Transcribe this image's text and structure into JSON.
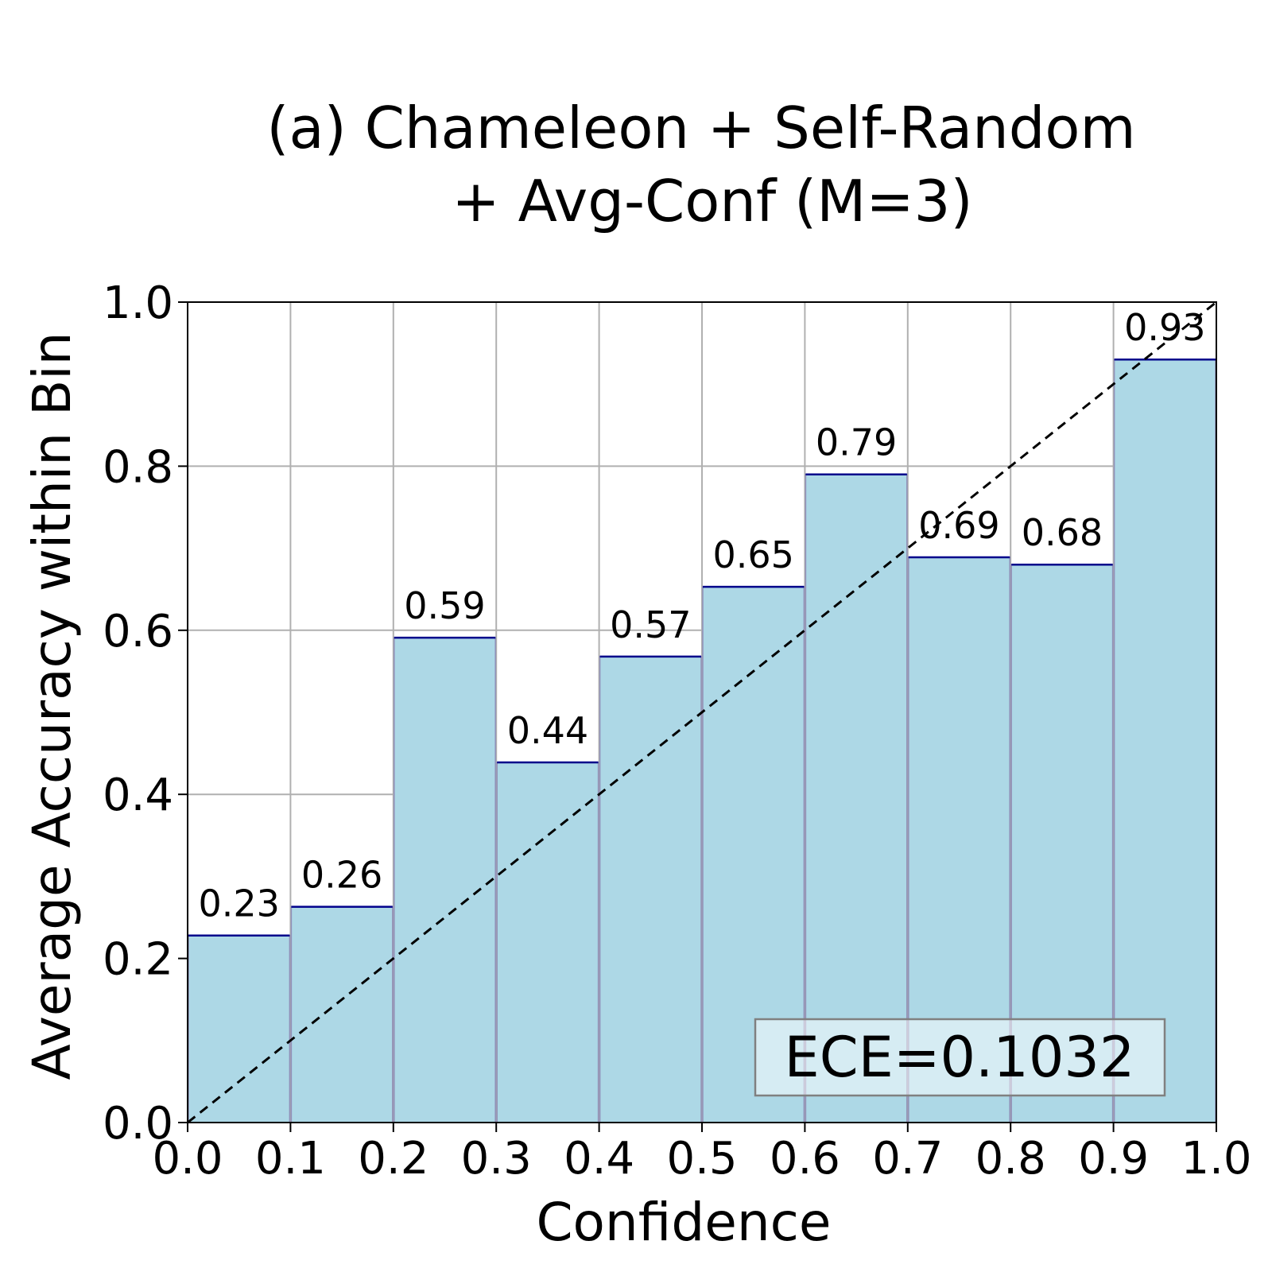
{
  "chart_data": {
    "type": "bar",
    "title_lines": [
      "(a) Chameleon + Self-Random",
      "+ Avg-Conf (M=3)"
    ],
    "xlabel": "Confidence",
    "ylabel": "Average Accuracy within Bin",
    "xlim": [
      0.0,
      1.0
    ],
    "ylim": [
      0.0,
      1.0
    ],
    "x_ticks": [
      "0.0",
      "0.1",
      "0.2",
      "0.3",
      "0.4",
      "0.5",
      "0.6",
      "0.7",
      "0.8",
      "0.9",
      "1.0"
    ],
    "y_ticks": [
      "0.0",
      "0.2",
      "0.4",
      "0.6",
      "0.8",
      "1.0"
    ],
    "grid": true,
    "bin_edges": [
      0.0,
      0.1,
      0.2,
      0.3,
      0.4,
      0.5,
      0.6,
      0.7,
      0.8,
      0.9,
      1.0
    ],
    "values": [
      0.228,
      0.263,
      0.591,
      0.439,
      0.568,
      0.653,
      0.79,
      0.689,
      0.68,
      0.93
    ],
    "value_labels": [
      "0.23",
      "0.26",
      "0.59",
      "0.44",
      "0.57",
      "0.65",
      "0.79",
      "0.69",
      "0.68",
      "0.93"
    ],
    "diagonal": {
      "from": [
        0.0,
        0.0
      ],
      "to": [
        1.0,
        1.0
      ],
      "style": "dashed"
    },
    "annotation": "ECE=0.1032",
    "annotation_location": "bottom-right",
    "colors": {
      "bar_fill": "#add8e6",
      "bar_top": "#00008b",
      "bar_edge": "#9090b8",
      "grid": "#b0b0b0",
      "diagonal": "#000000"
    }
  }
}
